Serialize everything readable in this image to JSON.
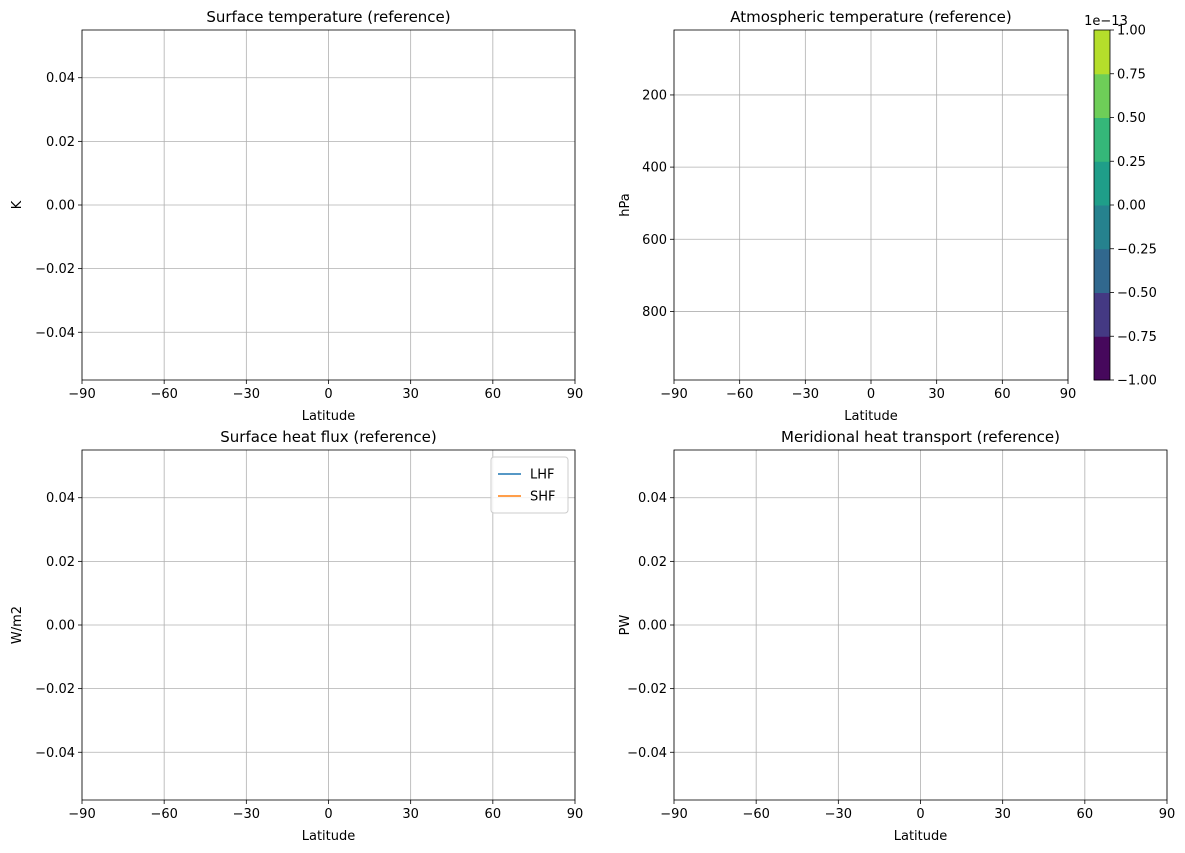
{
  "chart_data": [
    {
      "type": "line",
      "title": "Surface temperature (reference)",
      "xlabel": "Latitude",
      "ylabel": "K",
      "xlim": [
        -90,
        90
      ],
      "ylim": [
        -0.055,
        0.055
      ],
      "xticks": [
        -90,
        -60,
        -30,
        0,
        30,
        60,
        90
      ],
      "xtick_labels": [
        "−90",
        "−60",
        "−30",
        "0",
        "30",
        "60",
        "90"
      ],
      "yticks": [
        -0.04,
        -0.02,
        0.0,
        0.02,
        0.04
      ],
      "ytick_labels": [
        "−0.04",
        "−0.02",
        "0.00",
        "0.02",
        "0.04"
      ],
      "grid": true,
      "series": []
    },
    {
      "type": "heatmap",
      "title": "Atmospheric temperature (reference)",
      "xlabel": "Latitude",
      "ylabel": "hPa",
      "xlim": [
        -90,
        90
      ],
      "ylim": [
        990,
        20
      ],
      "y_inverted": true,
      "xticks": [
        -90,
        -60,
        -30,
        0,
        30,
        60,
        90
      ],
      "xtick_labels": [
        "−90",
        "−60",
        "−30",
        "0",
        "30",
        "60",
        "90"
      ],
      "yticks": [
        200,
        400,
        600,
        800
      ],
      "ytick_labels": [
        "200",
        "400",
        "600",
        "800"
      ],
      "grid": true,
      "colorbar": {
        "offset_label": "1e−13",
        "levels": [
          -1.0,
          -0.75,
          -0.5,
          -0.25,
          0.0,
          0.25,
          0.5,
          0.75,
          1.0
        ],
        "tick_labels": [
          "−1.00",
          "−0.75",
          "−0.50",
          "−0.25",
          "0.00",
          "0.25",
          "0.50",
          "0.75",
          "1.00"
        ],
        "colors": [
          "#46085c",
          "#443983",
          "#31688e",
          "#26828e",
          "#1f9e89",
          "#35b779",
          "#6ece58",
          "#b5de2b",
          "#dde318"
        ]
      }
    },
    {
      "type": "line",
      "title": "Surface heat flux (reference)",
      "xlabel": "Latitude",
      "ylabel": "W/m2",
      "xlim": [
        -90,
        90
      ],
      "ylim": [
        -0.055,
        0.055
      ],
      "xticks": [
        -90,
        -60,
        -30,
        0,
        30,
        60,
        90
      ],
      "xtick_labels": [
        "−90",
        "−60",
        "−30",
        "0",
        "30",
        "60",
        "90"
      ],
      "yticks": [
        -0.04,
        -0.02,
        0.0,
        0.02,
        0.04
      ],
      "ytick_labels": [
        "−0.04",
        "−0.02",
        "0.00",
        "0.02",
        "0.04"
      ],
      "grid": true,
      "legend": "top-right",
      "series": [
        {
          "name": "LHF",
          "color": "#1f77b4",
          "values": []
        },
        {
          "name": "SHF",
          "color": "#ff7f0e",
          "values": []
        }
      ]
    },
    {
      "type": "line",
      "title": "Meridional heat transport (reference)",
      "xlabel": "Latitude",
      "ylabel": "PW",
      "xlim": [
        -90,
        90
      ],
      "ylim": [
        -0.055,
        0.055
      ],
      "xticks": [
        -90,
        -60,
        -30,
        0,
        30,
        60,
        90
      ],
      "xtick_labels": [
        "−90",
        "−60",
        "−30",
        "0",
        "30",
        "60",
        "90"
      ],
      "yticks": [
        -0.04,
        -0.02,
        0.0,
        0.02,
        0.04
      ],
      "ytick_labels": [
        "−0.04",
        "−0.02",
        "0.00",
        "0.02",
        "0.04"
      ],
      "grid": true,
      "series": []
    }
  ]
}
